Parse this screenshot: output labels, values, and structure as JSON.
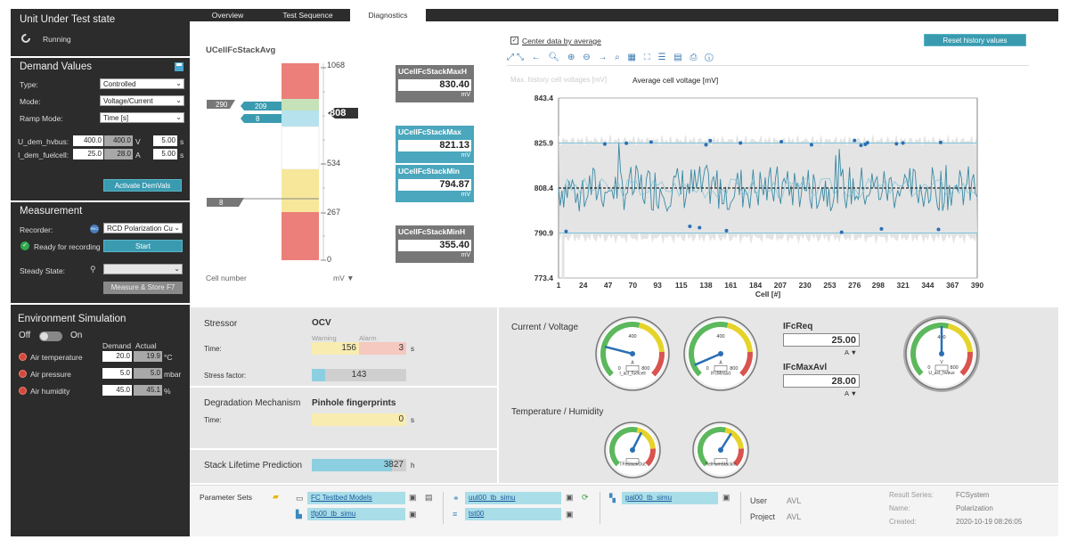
{
  "uut": {
    "title": "Unit Under Test state",
    "status": "Running"
  },
  "demand": {
    "title": "Demand Values",
    "type_label": "Type:",
    "type_value": "Controlled",
    "mode_label": "Mode:",
    "mode_value": "Voltage/Current",
    "ramp_label": "Ramp Mode:",
    "ramp_value": "Time [s]",
    "u_label": "U_dem_hvbus:",
    "u_val": "400.0",
    "u_act": "400.0",
    "u_unit": "V",
    "u_time": "5.00",
    "u_tunit": "s",
    "i_label": "I_dem_fuelcell:",
    "i_val": "25.0",
    "i_act": "28.0",
    "i_unit": "A",
    "i_time": "5.00",
    "i_tunit": "s",
    "activate": "Activate DemVals"
  },
  "measurement": {
    "title": "Measurement",
    "recorder_label": "Recorder:",
    "recorder_value": "RCD Polarization Cu",
    "ready": "Ready for recording",
    "start": "Start",
    "steady_label": "Steady State:",
    "measure": "Measure & Store  F7"
  },
  "env": {
    "title": "Environment Simulation",
    "off": "Off",
    "on": "On",
    "demand_h": "Demand",
    "actual_h": "Actual",
    "rows": [
      {
        "label": "Air temperature",
        "d": "20.0",
        "a": "19.9",
        "u": "°C"
      },
      {
        "label": "Air pressure",
        "d": "5.0",
        "a": "5.0",
        "u": "mbar"
      },
      {
        "label": "Air humidity",
        "d": "45.0",
        "a": "45.1",
        "u": "%"
      }
    ]
  },
  "tabs": [
    "Overview",
    "Test Sequence",
    "Diagnostics"
  ],
  "stack": {
    "title": "UCellFcStackAvg",
    "ticks": [
      "1068",
      "534",
      "267",
      "0"
    ],
    "current": "808",
    "left_tag": "290",
    "mid_tag1": "209",
    "mid_tag2": "8",
    "low_tag": "8",
    "cell_label": "Cell number",
    "unit_label": "mV"
  },
  "tiles": [
    {
      "name": "UCellFcStackMaxH",
      "value": "830.40",
      "unit": "mV"
    },
    {
      "name": "UCellFcStackMax",
      "value": "821.13",
      "unit": "mV"
    },
    {
      "name": "UCellFcStackMin",
      "value": "794.87",
      "unit": "mV"
    },
    {
      "name": "UCellFcStackMinH",
      "value": "355.40",
      "unit": "mV"
    }
  ],
  "chart_opts": {
    "center_label": "Center data by average",
    "reset": "Reset history values",
    "legend1": "Max. history cell voltages [mV]",
    "legend2": "Average cell voltage [mV]"
  },
  "chart_data": {
    "type": "line",
    "title": "Average cell voltage [mV]",
    "xlabel": "Cell [#]",
    "ylabel": "",
    "yticks": [
      843.4,
      825.9,
      808.4,
      790.9,
      773.4
    ],
    "xticks": [
      1,
      24,
      47,
      70,
      93,
      115,
      138,
      161,
      184,
      207,
      230,
      253,
      276,
      298,
      321,
      344,
      367,
      390
    ],
    "ylim": [
      773.4,
      843.4
    ],
    "xlim": [
      1,
      390
    ],
    "mean": 808.4,
    "upper": 825.9,
    "lower": 790.9,
    "outliers_high": [
      [
        44,
        825.5
      ],
      [
        64,
        825.8
      ],
      [
        87,
        826.3
      ],
      [
        138,
        825.2
      ],
      [
        142,
        826.8
      ],
      [
        170,
        825.9
      ],
      [
        208,
        826.4
      ],
      [
        236,
        825.2
      ],
      [
        276,
        826.9
      ],
      [
        282,
        825.0
      ],
      [
        286,
        825.4
      ],
      [
        288,
        826.0
      ],
      [
        315,
        825.6
      ],
      [
        321,
        825.9
      ],
      [
        356,
        826.1
      ]
    ],
    "outliers_low": [
      [
        8,
        791.5
      ],
      [
        123,
        793.5
      ],
      [
        132,
        793.0
      ],
      [
        157,
        791.8
      ],
      [
        264,
        791.2
      ],
      [
        301,
        792.5
      ],
      [
        354,
        792.3
      ]
    ]
  },
  "stressor": {
    "title": "Stressor",
    "ocv": "OCV",
    "warning": "Warning",
    "alarm": "Alarm",
    "time_label": "Time:",
    "time_warn": "156",
    "time_alarm": "3",
    "time_unit": "s",
    "sf_label": "Stress factor:",
    "sf_value": "143",
    "sf_level": 0.14
  },
  "degradation": {
    "title": "Degradation Mechanism",
    "mech": "Pinhole fingerprints",
    "time_label": "Time:",
    "time_value": "0",
    "time_unit": "s"
  },
  "lifetime": {
    "title": "Stack Lifetime Prediction",
    "value": "3827",
    "unit": "h",
    "level": 0.85
  },
  "cv": {
    "title": "Current / Voltage",
    "g1": "I_act_fuelcell",
    "g1u": "A",
    "g2": "IFcMeasd",
    "g2u": "A",
    "g3": "U_act_hvbus",
    "g3u": "V",
    "ifcreq_label": "IFcReq",
    "ifcreq": "25.00",
    "ifcreq_u": "A",
    "ifcmax_label": "IFcMaxAvl",
    "ifcmax": "28.00",
    "ifcmax_u": "A",
    "ticks_a": [
      "0",
      "400",
      "800"
    ],
    "ticks_v": [
      "0",
      "400",
      "800"
    ]
  },
  "th": {
    "title": "Temperature / Humidity",
    "g1": "TFcStackOut",
    "g2": "RelHumStackIn"
  },
  "params": {
    "title": "Parameter Sets",
    "p1": "FC Testbed Models",
    "p2": "tfp00_tb_simu",
    "p3": "uut00_tb_simu",
    "p4": "tst00",
    "p5": "pal00_tb_simu"
  },
  "meta": {
    "user_label": "User",
    "user": "AVL",
    "project_label": "Project",
    "project": "AVL",
    "rs_label": "Result Series:",
    "rs": "FCSystem",
    "name_label": "Name:",
    "name": "Polarization",
    "created_label": "Created:",
    "created": "2020-10-19 08:26:05"
  },
  "colors": {
    "teal": "#3a9bb0",
    "dark": "#2c2c2c",
    "red": "#ec7f7a",
    "green": "#c5e2b8",
    "yellow": "#f7e79a",
    "blue": "#b6e2ee"
  }
}
